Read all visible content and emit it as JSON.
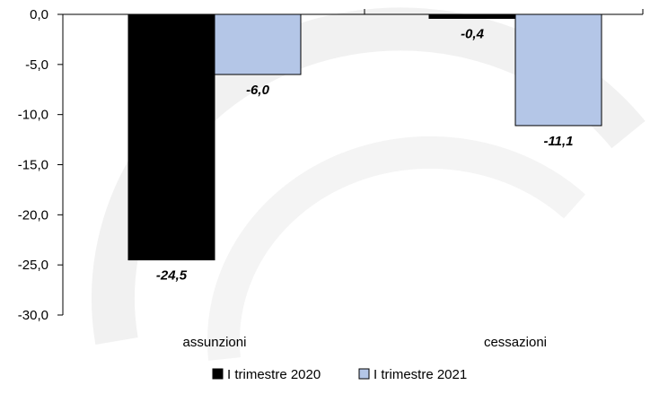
{
  "chart_data": {
    "type": "bar",
    "categories": [
      "assunzioni",
      "cessazioni"
    ],
    "series": [
      {
        "name": "I trimestre 2020",
        "values": [
          -24.5,
          -0.4
        ],
        "labels": [
          "-24,5",
          "-0,4"
        ],
        "color": "#000000"
      },
      {
        "name": "I trimestre 2021",
        "values": [
          -6.0,
          -11.1
        ],
        "labels": [
          "-6,0",
          "-11,1"
        ],
        "color": "#b4c6e7"
      }
    ],
    "yticks": [
      0,
      -5,
      -10,
      -15,
      -20,
      -25,
      -30
    ],
    "ytick_labels": [
      "0,0",
      "-5,0",
      "-10,0",
      "-15,0",
      "-20,0",
      "-25,0",
      "-30,0"
    ],
    "ylim": [
      -30,
      0
    ],
    "legend": "bottom-center",
    "grid": false,
    "title": "",
    "xlabel": "",
    "ylabel": ""
  }
}
